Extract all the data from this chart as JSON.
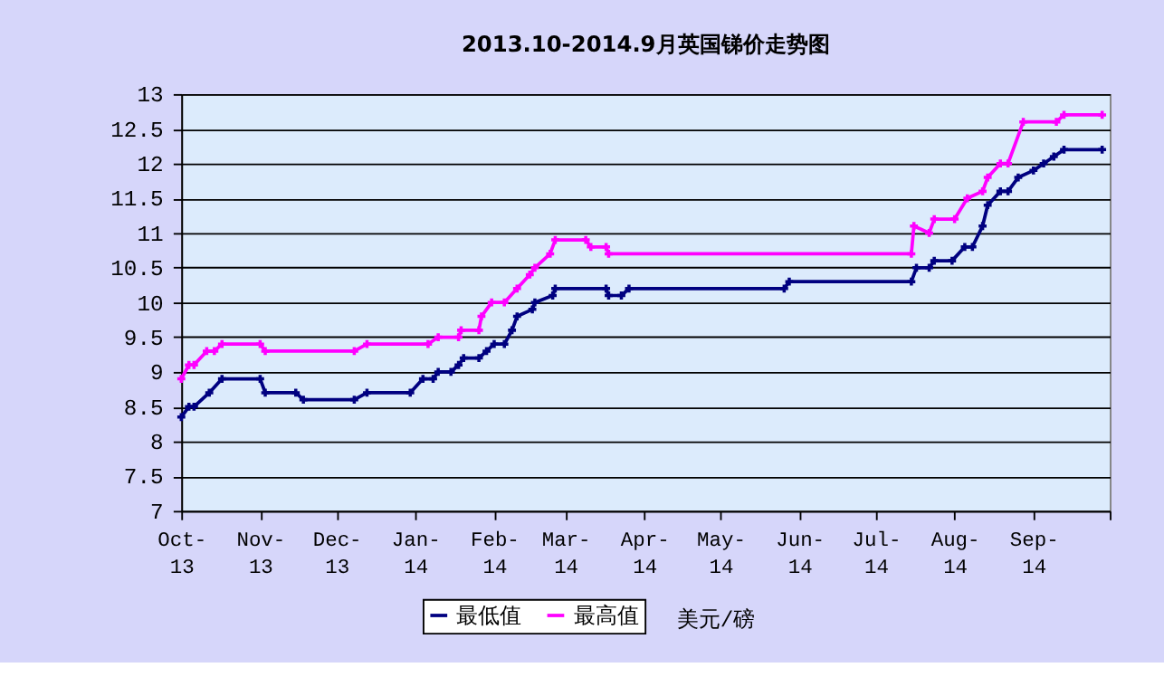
{
  "chart_data": {
    "type": "line",
    "title": "2013.10-2014.9月英国锑价走势图",
    "xlim": [
      "2013-10-01",
      "2014-10-01"
    ],
    "xticks": [
      {
        "value": "2013-10-01",
        "label": "Oct-13"
      },
      {
        "value": "2013-11-01",
        "label": "Nov-13"
      },
      {
        "value": "2013-12-01",
        "label": "Dec-13"
      },
      {
        "value": "2014-01-01",
        "label": "Jan-14"
      },
      {
        "value": "2014-02-01",
        "label": "Feb-14"
      },
      {
        "value": "2014-03-01",
        "label": "Mar-14"
      },
      {
        "value": "2014-04-01",
        "label": "Apr-14"
      },
      {
        "value": "2014-05-01",
        "label": "May-14"
      },
      {
        "value": "2014-06-01",
        "label": "Jun-14"
      },
      {
        "value": "2014-07-01",
        "label": "Jul-14"
      },
      {
        "value": "2014-08-01",
        "label": "Aug-14"
      },
      {
        "value": "2014-09-01",
        "label": "Sep-14"
      },
      {
        "value": "2014-10-01",
        "label": null
      }
    ],
    "ylim": [
      7,
      13
    ],
    "yticks": [
      7,
      7.5,
      8,
      8.5,
      9,
      9.5,
      10,
      10.5,
      11,
      11.5,
      12,
      12.5,
      13
    ],
    "grid": "y",
    "legend": "bottom",
    "marker": "cross",
    "line_style": "solid",
    "annotations": [
      "美元/磅"
    ],
    "series": [
      {
        "name": "最低值",
        "color": "#000080",
        "x": [
          "2013-10-01",
          "2013-10-04",
          "2013-10-06",
          "2013-10-12",
          "2013-10-17",
          "2013-11-01",
          "2013-11-03",
          "2013-11-15",
          "2013-11-18",
          "2013-12-08",
          "2013-12-13",
          "2013-12-30",
          "2014-01-04",
          "2014-01-08",
          "2014-01-10",
          "2014-01-15",
          "2014-01-18",
          "2014-01-20",
          "2014-01-26",
          "2014-01-29",
          "2014-02-01",
          "2014-02-05",
          "2014-02-08",
          "2014-02-10",
          "2014-02-16",
          "2014-02-17",
          "2014-02-24",
          "2014-02-25",
          "2014-03-17",
          "2014-03-18",
          "2014-03-23",
          "2014-03-26",
          "2014-05-26",
          "2014-05-28",
          "2014-07-15",
          "2014-07-17",
          "2014-07-22",
          "2014-07-24",
          "2014-07-31",
          "2014-08-05",
          "2014-08-08",
          "2014-08-12",
          "2014-08-14",
          "2014-08-19",
          "2014-08-22",
          "2014-08-26",
          "2014-09-01",
          "2014-09-05",
          "2014-09-09",
          "2014-09-13",
          "2014-09-28"
        ],
        "values": [
          8.35,
          8.5,
          8.5,
          8.7,
          8.9,
          8.9,
          8.7,
          8.7,
          8.6,
          8.6,
          8.7,
          8.7,
          8.9,
          8.9,
          9.0,
          9.0,
          9.1,
          9.2,
          9.2,
          9.3,
          9.4,
          9.4,
          9.6,
          9.8,
          9.9,
          10.0,
          10.1,
          10.2,
          10.2,
          10.1,
          10.1,
          10.2,
          10.2,
          10.3,
          10.3,
          10.5,
          10.5,
          10.6,
          10.6,
          10.8,
          10.8,
          11.1,
          11.4,
          11.6,
          11.6,
          11.8,
          11.9,
          12.0,
          12.1,
          12.2,
          12.2
        ]
      },
      {
        "name": "最高值",
        "color": "#ff00ff",
        "x": [
          "2013-10-01",
          "2013-10-04",
          "2013-10-06",
          "2013-10-11",
          "2013-10-14",
          "2013-10-17",
          "2013-11-01",
          "2013-11-03",
          "2013-12-08",
          "2013-12-13",
          "2014-01-06",
          "2014-01-10",
          "2014-01-18",
          "2014-01-19",
          "2014-01-26",
          "2014-01-27",
          "2014-01-31",
          "2014-02-05",
          "2014-02-10",
          "2014-02-15",
          "2014-02-17",
          "2014-02-23",
          "2014-02-25",
          "2014-03-09",
          "2014-03-11",
          "2014-03-17",
          "2014-03-18",
          "2014-07-15",
          "2014-07-16",
          "2014-07-22",
          "2014-07-24",
          "2014-08-01",
          "2014-08-06",
          "2014-08-12",
          "2014-08-14",
          "2014-08-19",
          "2014-08-22",
          "2014-08-28",
          "2014-09-10",
          "2014-09-13",
          "2014-09-28"
        ],
        "values": [
          8.9,
          9.1,
          9.1,
          9.3,
          9.3,
          9.4,
          9.4,
          9.3,
          9.3,
          9.4,
          9.4,
          9.5,
          9.5,
          9.6,
          9.6,
          9.8,
          10.0,
          10.0,
          10.2,
          10.4,
          10.5,
          10.7,
          10.9,
          10.9,
          10.8,
          10.8,
          10.7,
          10.7,
          11.1,
          11.0,
          11.2,
          11.2,
          11.5,
          11.6,
          11.8,
          12.0,
          12.0,
          12.6,
          12.6,
          12.7,
          12.7
        ]
      }
    ]
  }
}
